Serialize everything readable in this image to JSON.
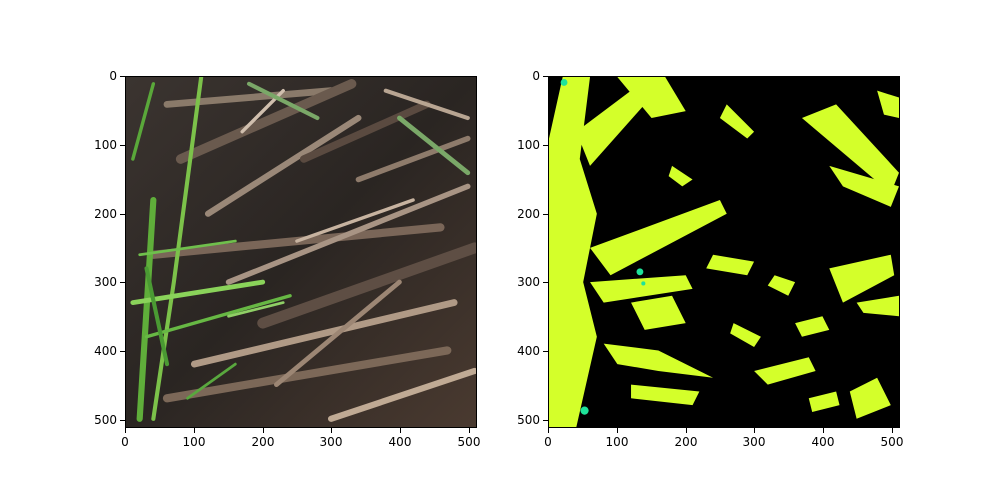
{
  "figure": {
    "panels": [
      {
        "id": "photo",
        "content": "photograph of straw residue and green grass blades",
        "x_ticks": [
          "0",
          "100",
          "200",
          "300",
          "400",
          "500"
        ],
        "y_ticks": [
          "0",
          "100",
          "200",
          "300",
          "400",
          "500"
        ],
        "x_range": [
          0,
          512
        ],
        "y_range": [
          0,
          512
        ]
      },
      {
        "id": "mask",
        "content": "segmentation mask",
        "x_ticks": [
          "0",
          "100",
          "200",
          "300",
          "400",
          "500"
        ],
        "y_ticks": [
          "0",
          "100",
          "200",
          "300",
          "400",
          "500"
        ],
        "x_range": [
          0,
          512
        ],
        "y_range": [
          0,
          512
        ]
      }
    ],
    "colors": {
      "background": "#000000",
      "mask_primary": "#d4ff2a",
      "mask_secondary": "#1ee39a",
      "frame": "#000000"
    }
  }
}
